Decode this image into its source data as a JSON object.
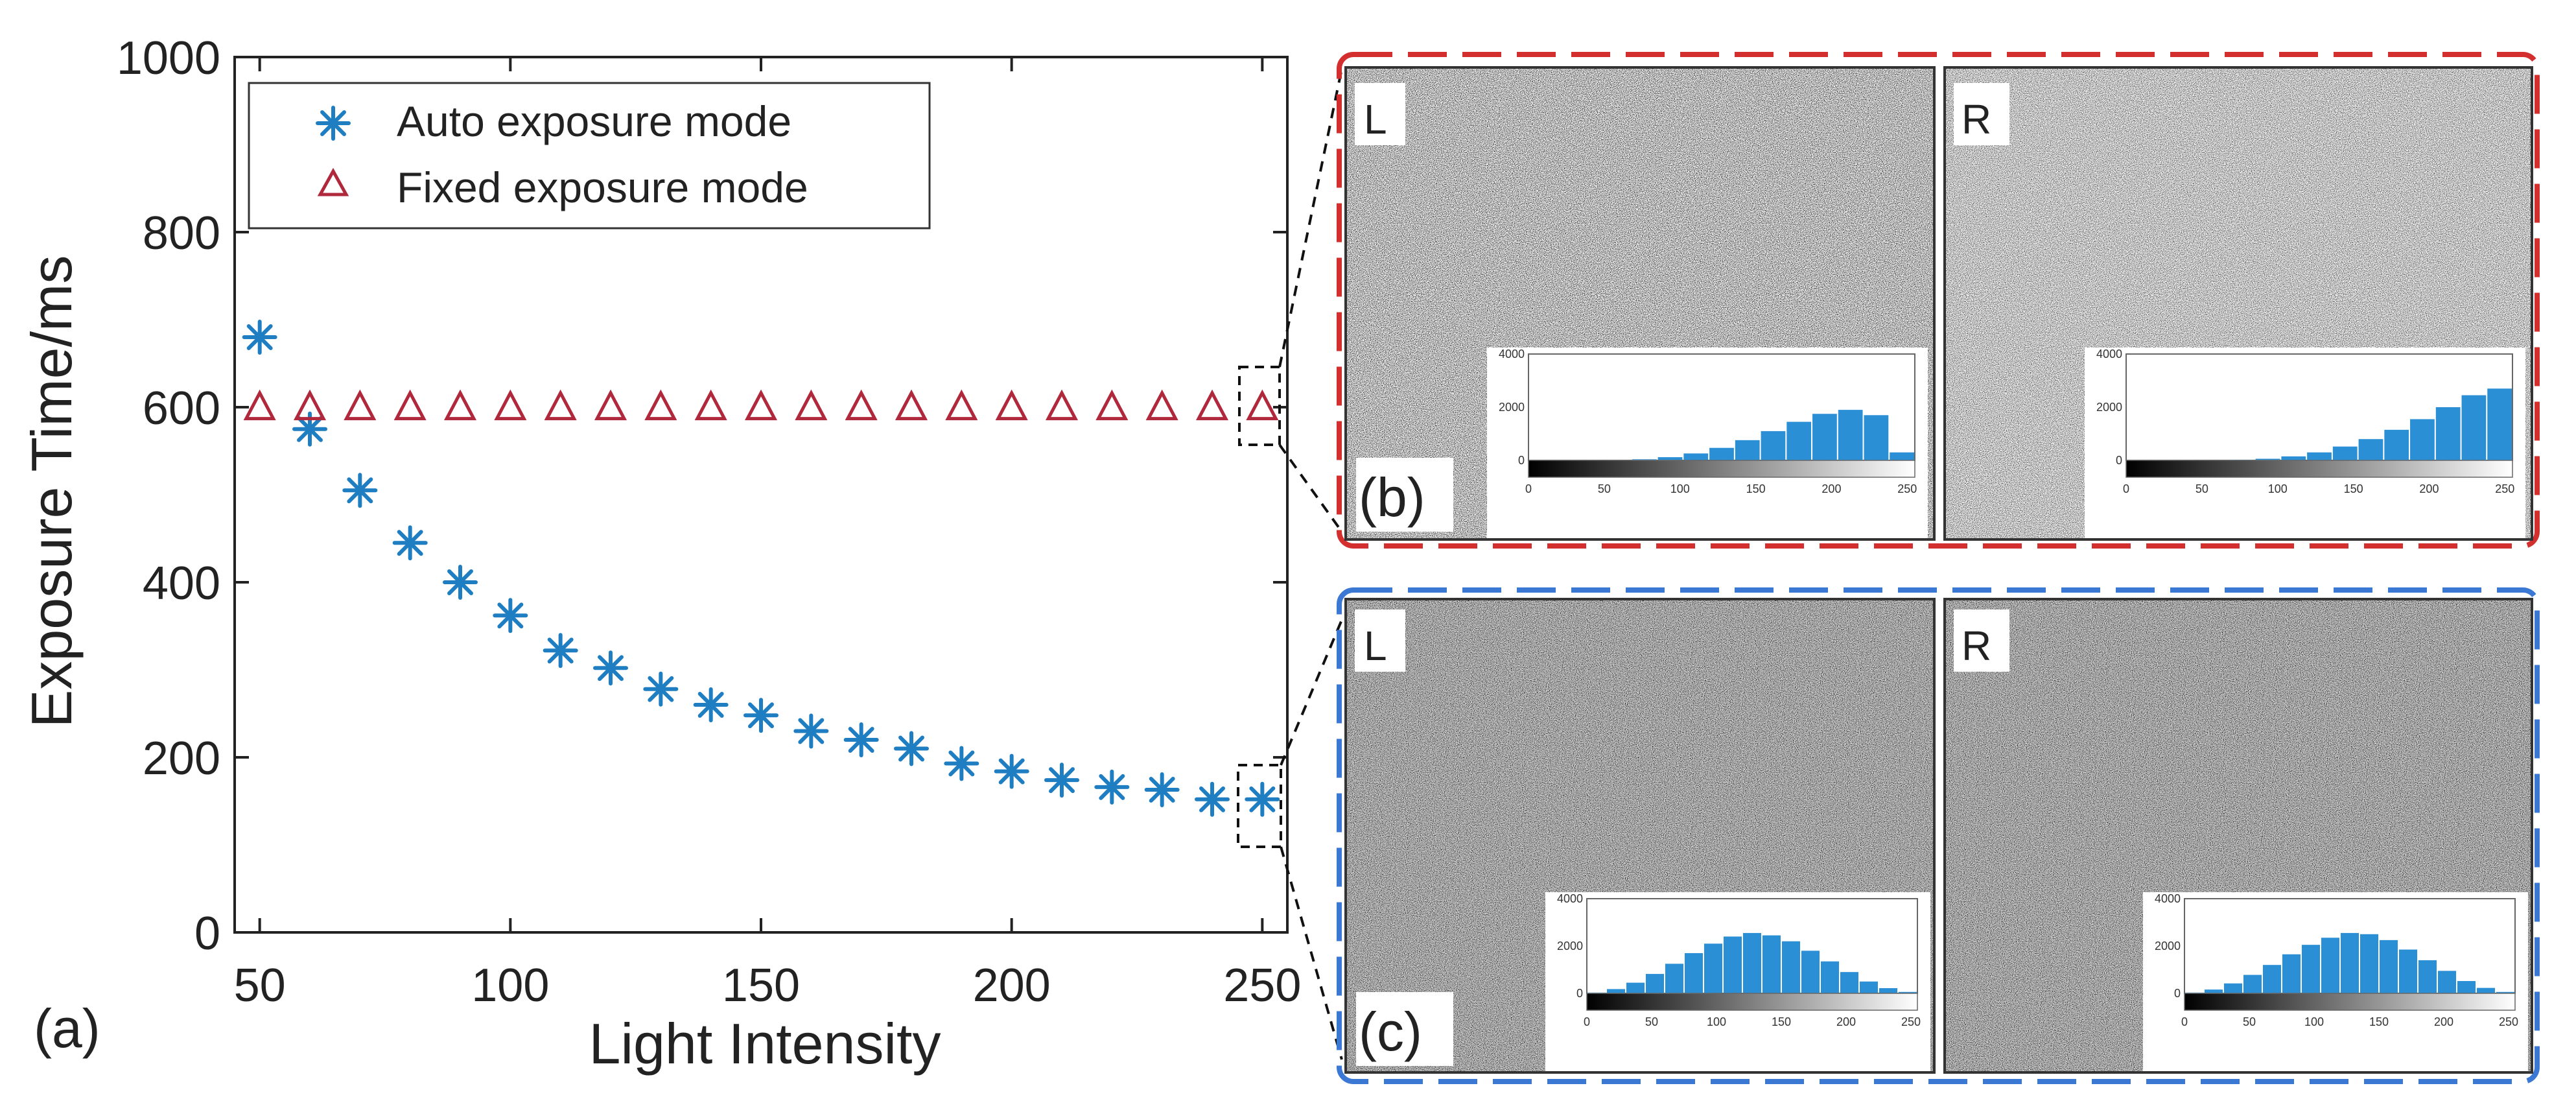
{
  "chart_data": [
    {
      "type": "scatter",
      "panel_label": "(a)",
      "xlabel": "Light Intensity",
      "ylabel": "Exposure Time/ms",
      "xlim": [
        45,
        255
      ],
      "ylim": [
        0,
        1000
      ],
      "x_ticks": [
        50,
        100,
        150,
        200,
        250
      ],
      "y_ticks": [
        0,
        200,
        400,
        600,
        800,
        1000
      ],
      "grid": false,
      "legend_position": "top-left",
      "series": [
        {
          "name": "Auto exposure mode",
          "marker": "asterisk",
          "color": "#1f7ec2",
          "x": [
            50,
            60,
            70,
            80,
            90,
            100,
            110,
            120,
            130,
            140,
            150,
            160,
            170,
            180,
            190,
            200,
            210,
            220,
            230,
            240,
            250
          ],
          "y": [
            680,
            575,
            505,
            445,
            400,
            362,
            322,
            302,
            278,
            260,
            248,
            230,
            220,
            210,
            193,
            184,
            174,
            166,
            163,
            152,
            152
          ]
        },
        {
          "name": "Fixed exposure mode",
          "marker": "triangle",
          "color": "#b0283c",
          "x": [
            50,
            60,
            70,
            80,
            90,
            100,
            110,
            120,
            130,
            140,
            150,
            160,
            170,
            180,
            190,
            200,
            210,
            220,
            230,
            240,
            250
          ],
          "y": [
            600,
            600,
            600,
            600,
            600,
            600,
            600,
            600,
            600,
            600,
            600,
            600,
            600,
            600,
            600,
            600,
            600,
            600,
            600,
            600,
            600
          ]
        }
      ]
    },
    {
      "type": "bar",
      "panel_label": "(b)",
      "description_mode": "Fixed exposure mode",
      "frame_color": "#d32f2f",
      "subpanels": [
        {
          "side": "L",
          "histogram": {
            "x_ticks": [
              0,
              50,
              100,
              150,
              200,
              250
            ],
            "y_ticks": [
              0,
              2000,
              4000
            ],
            "xlim": [
              0,
              255
            ],
            "ylim": [
              0,
              4000
            ],
            "values": [
              0,
              0,
              0,
              10,
              40,
              120,
              260,
              470,
              760,
              1100,
              1450,
              1750,
              1900,
              1700,
              300
            ]
          }
        },
        {
          "side": "R",
          "histogram": {
            "x_ticks": [
              0,
              50,
              100,
              150,
              200,
              250
            ],
            "y_ticks": [
              0,
              2000,
              4000
            ],
            "xlim": [
              0,
              255
            ],
            "ylim": [
              0,
              4000
            ],
            "values": [
              0,
              0,
              0,
              5,
              20,
              60,
              150,
              300,
              520,
              800,
              1150,
              1550,
              2000,
              2450,
              2700
            ]
          }
        }
      ]
    },
    {
      "type": "bar",
      "panel_label": "(c)",
      "description_mode": "Auto exposure mode",
      "frame_color": "#3a78d4",
      "subpanels": [
        {
          "side": "L",
          "histogram": {
            "x_ticks": [
              0,
              50,
              100,
              150,
              200,
              250
            ],
            "y_ticks": [
              0,
              2000,
              4000
            ],
            "xlim": [
              0,
              255
            ],
            "ylim": [
              0,
              4000
            ],
            "values": [
              30,
              180,
              450,
              820,
              1250,
              1700,
              2100,
              2400,
              2550,
              2450,
              2200,
              1800,
              1350,
              900,
              500,
              220,
              60
            ]
          }
        },
        {
          "side": "R",
          "histogram": {
            "x_ticks": [
              0,
              50,
              100,
              150,
              200,
              250
            ],
            "y_ticks": [
              0,
              2000,
              4000
            ],
            "xlim": [
              0,
              255
            ],
            "ylim": [
              0,
              4000
            ],
            "values": [
              30,
              160,
              420,
              780,
              1200,
              1650,
              2050,
              2350,
              2550,
              2500,
              2250,
              1850,
              1400,
              950,
              520,
              230,
              60
            ]
          }
        }
      ]
    }
  ]
}
